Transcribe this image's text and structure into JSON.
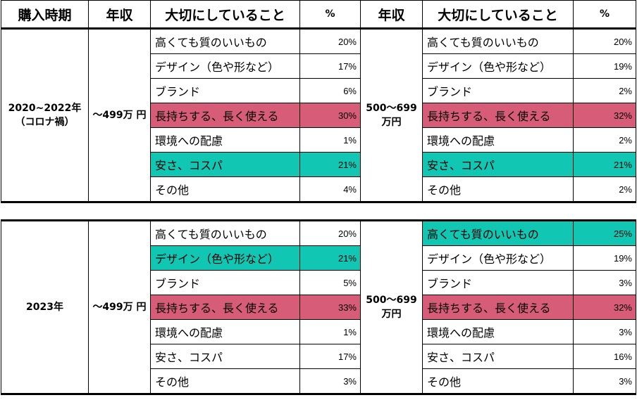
{
  "header": {
    "period": "購入時期",
    "income": "年収",
    "priority": "大切にしていること",
    "percent": "%"
  },
  "colors": {
    "highlight_pink": "#d75c77",
    "highlight_teal": "#11c6b2"
  },
  "blocks": [
    {
      "period": "2020~2022年\n（コロナ禍）",
      "left_income": "〜499万\n円",
      "right_income": "500〜699\n万円",
      "rows": [
        {
          "left_label": "高くても質のいいもの",
          "left_pct": "20%",
          "left_hl": "",
          "right_label": "高くても質のいいもの",
          "right_pct": "20%",
          "right_hl": ""
        },
        {
          "left_label": "デザイン（色や形など）",
          "left_pct": "17%",
          "left_hl": "",
          "right_label": "デザイン（色や形など）",
          "right_pct": "19%",
          "right_hl": ""
        },
        {
          "left_label": "ブランド",
          "left_pct": "6%",
          "left_hl": "",
          "right_label": "ブランド",
          "right_pct": "2%",
          "right_hl": ""
        },
        {
          "left_label": "長持ちする、長く使える",
          "left_pct": "30%",
          "left_hl": "pink",
          "right_label": "長持ちする、長く使える",
          "right_pct": "32%",
          "right_hl": "pink"
        },
        {
          "left_label": "環境への配慮",
          "left_pct": "1%",
          "left_hl": "",
          "right_label": "環境への配慮",
          "right_pct": "2%",
          "right_hl": ""
        },
        {
          "left_label": "安さ、コスパ",
          "left_pct": "21%",
          "left_hl": "teal",
          "right_label": "安さ、コスパ",
          "right_pct": "21%",
          "right_hl": "teal"
        },
        {
          "left_label": "その他",
          "left_pct": "4%",
          "left_hl": "",
          "right_label": "その他",
          "right_pct": "2%",
          "right_hl": ""
        }
      ]
    },
    {
      "period": "2023年",
      "left_income": "〜499万\n円",
      "right_income": "500〜699\n万円",
      "rows": [
        {
          "left_label": "高くても質のいいもの",
          "left_pct": "20%",
          "left_hl": "",
          "right_label": "高くても質のいいもの",
          "right_pct": "25%",
          "right_hl": "teal"
        },
        {
          "left_label": "デザイン（色や形など）",
          "left_pct": "21%",
          "left_hl": "teal",
          "right_label": "デザイン（色や形など）",
          "right_pct": "19%",
          "right_hl": ""
        },
        {
          "left_label": "ブランド",
          "left_pct": "5%",
          "left_hl": "",
          "right_label": "ブランド",
          "right_pct": "3%",
          "right_hl": ""
        },
        {
          "left_label": "長持ちする、長く使える",
          "left_pct": "33%",
          "left_hl": "pink",
          "right_label": "長持ちする、長く使える",
          "right_pct": "32%",
          "right_hl": "pink"
        },
        {
          "left_label": "環境への配慮",
          "left_pct": "1%",
          "left_hl": "",
          "right_label": "環境への配慮",
          "right_pct": "3%",
          "right_hl": ""
        },
        {
          "left_label": "安さ、コスパ",
          "left_pct": "17%",
          "left_hl": "",
          "right_label": "安さ、コスパ",
          "right_pct": "16%",
          "right_hl": ""
        },
        {
          "left_label": "その他",
          "left_pct": "3%",
          "left_hl": "",
          "right_label": "その他",
          "right_pct": "3%",
          "right_hl": ""
        }
      ]
    }
  ]
}
